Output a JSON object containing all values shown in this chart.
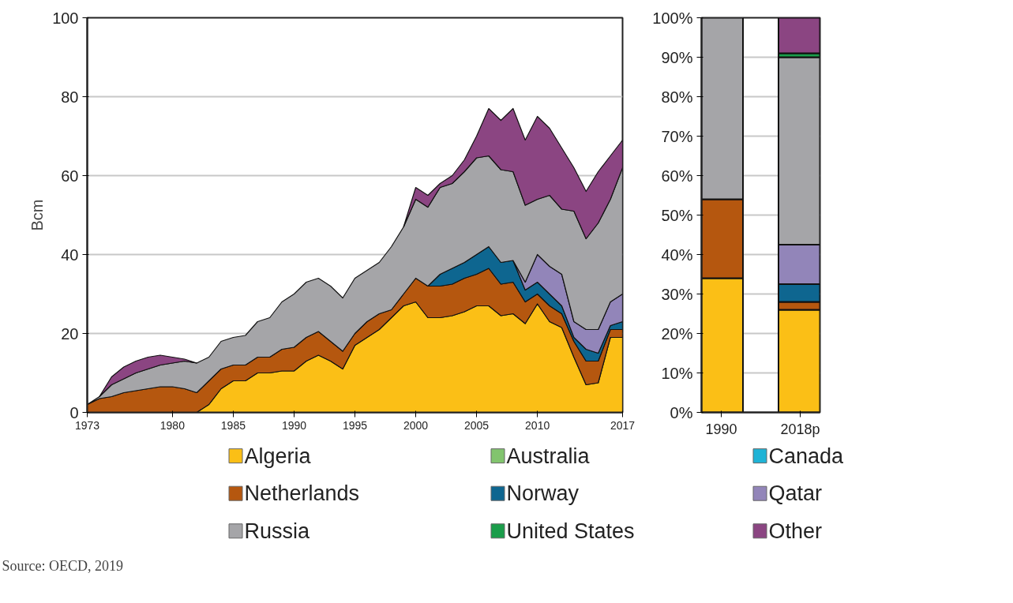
{
  "chart_data": [
    {
      "type": "area",
      "stacked": true,
      "ylabel": "Bcm",
      "x": [
        1973,
        1974,
        1975,
        1976,
        1977,
        1978,
        1979,
        1980,
        1981,
        1982,
        1983,
        1984,
        1985,
        1986,
        1987,
        1988,
        1989,
        1990,
        1991,
        1992,
        1993,
        1994,
        1995,
        1996,
        1997,
        1998,
        1999,
        2000,
        2001,
        2002,
        2003,
        2004,
        2005,
        2006,
        2007,
        2008,
        2009,
        2010,
        2011,
        2012,
        2013,
        2014,
        2015,
        2016,
        2017
      ],
      "xlim": [
        1973,
        2017
      ],
      "xticks": [
        1973,
        1980,
        1985,
        1990,
        1995,
        2000,
        2005,
        2010,
        2017
      ],
      "ylim": [
        0,
        100
      ],
      "yticks": [
        0,
        20,
        40,
        60,
        80,
        100
      ],
      "grid": "y",
      "legend": "bottom",
      "series": [
        {
          "name": "Algeria",
          "color": "#fbbf16",
          "values": [
            0,
            0,
            0,
            0,
            0,
            0,
            0,
            0,
            0,
            0,
            2,
            6,
            8,
            8,
            10,
            10,
            10.5,
            10.5,
            13,
            14.5,
            13,
            11,
            17,
            19,
            21,
            24,
            27,
            28,
            24,
            24,
            24.5,
            25.5,
            27,
            27,
            24.5,
            25,
            22.5,
            27.5,
            23,
            21.5,
            14,
            7,
            7.5,
            19,
            19
          ]
        },
        {
          "name": "Australia",
          "color": "#82c46e",
          "values": [
            null,
            null,
            null,
            null,
            null,
            null,
            null,
            null,
            null,
            null,
            null,
            null,
            null,
            null,
            null,
            null,
            null,
            null,
            null,
            null,
            null,
            null,
            null,
            null,
            null,
            null,
            null,
            null,
            null,
            null,
            null,
            null,
            null,
            null,
            null,
            null,
            null,
            null,
            null,
            null,
            null,
            null,
            null,
            null,
            null
          ]
        },
        {
          "name": "Canada",
          "color": "#1fb3d6",
          "values": [
            null,
            null,
            null,
            null,
            null,
            null,
            null,
            null,
            null,
            null,
            null,
            null,
            null,
            null,
            null,
            null,
            null,
            null,
            null,
            null,
            null,
            null,
            null,
            null,
            null,
            null,
            null,
            null,
            null,
            null,
            null,
            null,
            null,
            null,
            null,
            null,
            null,
            null,
            null,
            null,
            null,
            null,
            null,
            null,
            null
          ]
        },
        {
          "name": "Netherlands",
          "color": "#b5570f",
          "values": [
            2,
            3.5,
            4,
            5,
            5.5,
            6,
            6.5,
            6.5,
            6,
            5,
            6,
            5,
            4,
            4,
            4,
            4,
            5.5,
            6,
            6,
            6,
            5,
            4.5,
            3,
            4,
            4,
            2,
            3,
            6,
            8,
            8,
            8,
            8.5,
            8,
            9.5,
            8,
            8,
            5.5,
            2.5,
            4,
            3.5,
            4,
            6,
            5.5,
            2,
            2
          ]
        },
        {
          "name": "Norway",
          "color": "#0e6690",
          "values": [
            null,
            null,
            null,
            null,
            null,
            null,
            null,
            null,
            null,
            null,
            null,
            null,
            null,
            null,
            null,
            null,
            null,
            null,
            null,
            null,
            null,
            null,
            null,
            null,
            null,
            null,
            null,
            null,
            0,
            3,
            4,
            4,
            5,
            5.5,
            5.5,
            5.5,
            3,
            3,
            3,
            2,
            1,
            3,
            2,
            1,
            2
          ]
        },
        {
          "name": "Qatar",
          "color": "#9285b9",
          "values": [
            null,
            null,
            null,
            null,
            null,
            null,
            null,
            null,
            null,
            null,
            null,
            null,
            null,
            null,
            null,
            null,
            null,
            null,
            null,
            null,
            null,
            null,
            null,
            null,
            null,
            null,
            null,
            null,
            null,
            null,
            null,
            null,
            null,
            null,
            null,
            0,
            2,
            7,
            7,
            8,
            4,
            5,
            6,
            6,
            7
          ]
        },
        {
          "name": "Russia",
          "color": "#a5a5a8",
          "values": [
            0,
            0.5,
            3,
            3.5,
            4.5,
            5,
            5.5,
            6,
            7,
            7.5,
            6,
            7,
            7,
            7.5,
            9,
            10,
            12,
            13.5,
            14,
            13.5,
            14,
            13.5,
            14,
            13,
            13,
            16,
            17,
            20,
            20,
            22,
            21.5,
            23,
            24.5,
            23,
            23.5,
            22.5,
            19.5,
            14,
            18,
            16.5,
            28,
            23,
            27,
            26,
            32
          ]
        },
        {
          "name": "United States",
          "color": "#1a9d4a",
          "values": [
            null,
            null,
            null,
            null,
            null,
            null,
            null,
            null,
            null,
            null,
            null,
            null,
            null,
            null,
            null,
            null,
            null,
            null,
            null,
            null,
            null,
            null,
            null,
            null,
            null,
            null,
            null,
            null,
            null,
            null,
            null,
            null,
            null,
            null,
            null,
            null,
            null,
            null,
            null,
            null,
            null,
            null,
            null,
            null,
            null
          ]
        },
        {
          "name": "Other",
          "color": "#8b4582",
          "values": [
            null,
            0,
            2,
            3,
            3,
            3,
            2.5,
            1.5,
            0.5,
            0,
            null,
            null,
            null,
            null,
            null,
            null,
            null,
            null,
            null,
            null,
            null,
            null,
            null,
            null,
            null,
            null,
            0,
            3,
            3,
            1,
            2,
            3,
            5.5,
            12,
            12.5,
            16,
            16.5,
            21,
            17,
            15.5,
            11,
            12,
            13,
            11,
            7
          ]
        }
      ],
      "annotations": [
        "Source: OECD, 2019"
      ]
    },
    {
      "type": "bar",
      "stacked": true,
      "categories": [
        "1990",
        "2018p"
      ],
      "ylim": [
        0,
        100
      ],
      "yticks": [
        {
          "value": 0,
          "label": "0%"
        },
        {
          "value": 10,
          "label": "10%"
        },
        {
          "value": 20,
          "label": "20%"
        },
        {
          "value": 30,
          "label": "30%"
        },
        {
          "value": 40,
          "label": "40%"
        },
        {
          "value": 50,
          "label": "50%"
        },
        {
          "value": 60,
          "label": "60%"
        },
        {
          "value": 70,
          "label": "70%"
        },
        {
          "value": 80,
          "label": "80%"
        },
        {
          "value": 90,
          "label": "90%"
        },
        {
          "value": 100,
          "label": "100%"
        }
      ],
      "grid": "y",
      "series": [
        {
          "color": "#fbbf16",
          "values": [
            34,
            26
          ]
        },
        {
          "color": "#b5570f",
          "values": [
            20,
            2
          ]
        },
        {
          "color": "#0e6690",
          "values": [
            0,
            4.5
          ]
        },
        {
          "color": "#9285b9",
          "values": [
            0,
            10
          ]
        },
        {
          "color": "#a5a5a8",
          "values": [
            46,
            47.5
          ]
        },
        {
          "color": "#1a9d4a",
          "values": [
            0,
            1
          ]
        },
        {
          "color": "#8b4582",
          "values": [
            0,
            9
          ]
        }
      ]
    }
  ]
}
